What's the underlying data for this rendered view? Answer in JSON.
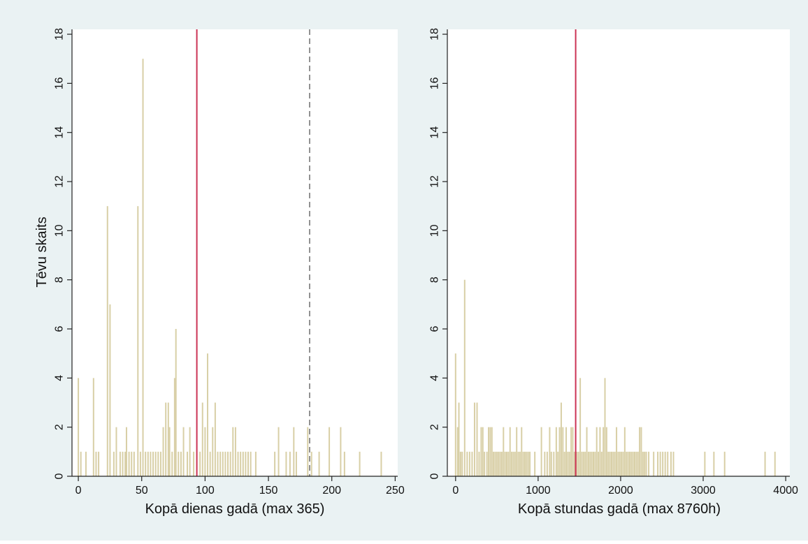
{
  "colors": {
    "background": "#eaf2f3",
    "plot_background": "#ffffff",
    "bar": "#d8cfa6",
    "mean_line": "#cc3355",
    "ref_line": "#777777"
  },
  "chart_data": [
    {
      "type": "bar",
      "xlabel": "Kopā dienas gadā (max 365)",
      "ylabel": "Tēvu skaits",
      "xlim": [
        -5,
        252
      ],
      "ylim": [
        0,
        18.2
      ],
      "xticks": [
        0,
        50,
        100,
        150,
        200,
        250
      ],
      "yticks": [
        0,
        2,
        4,
        6,
        8,
        10,
        12,
        14,
        16,
        18
      ],
      "grid": false,
      "mean_line_x": 93.5,
      "ref_line_x": 182.5,
      "bar_width": 0.9,
      "bars": [
        {
          "x": 0,
          "y": 4
        },
        {
          "x": 2,
          "y": 1
        },
        {
          "x": 6,
          "y": 1
        },
        {
          "x": 12,
          "y": 4
        },
        {
          "x": 14,
          "y": 1
        },
        {
          "x": 16,
          "y": 1
        },
        {
          "x": 23,
          "y": 11
        },
        {
          "x": 25,
          "y": 7
        },
        {
          "x": 28,
          "y": 1
        },
        {
          "x": 30,
          "y": 2
        },
        {
          "x": 33,
          "y": 1
        },
        {
          "x": 35,
          "y": 1
        },
        {
          "x": 37,
          "y": 1
        },
        {
          "x": 38,
          "y": 2
        },
        {
          "x": 40,
          "y": 1
        },
        {
          "x": 42,
          "y": 1
        },
        {
          "x": 44,
          "y": 1
        },
        {
          "x": 47,
          "y": 11
        },
        {
          "x": 49,
          "y": 1
        },
        {
          "x": 51,
          "y": 17
        },
        {
          "x": 53,
          "y": 1
        },
        {
          "x": 55,
          "y": 1
        },
        {
          "x": 57,
          "y": 1
        },
        {
          "x": 59,
          "y": 1
        },
        {
          "x": 61,
          "y": 1
        },
        {
          "x": 63,
          "y": 1
        },
        {
          "x": 65,
          "y": 1
        },
        {
          "x": 67,
          "y": 2
        },
        {
          "x": 69,
          "y": 3
        },
        {
          "x": 71,
          "y": 3
        },
        {
          "x": 72,
          "y": 2
        },
        {
          "x": 74,
          "y": 1
        },
        {
          "x": 76,
          "y": 4
        },
        {
          "x": 77,
          "y": 6
        },
        {
          "x": 79,
          "y": 1
        },
        {
          "x": 81,
          "y": 1
        },
        {
          "x": 83,
          "y": 2
        },
        {
          "x": 86,
          "y": 1
        },
        {
          "x": 88,
          "y": 2
        },
        {
          "x": 91,
          "y": 1
        },
        {
          "x": 96,
          "y": 1
        },
        {
          "x": 98,
          "y": 3
        },
        {
          "x": 100,
          "y": 2
        },
        {
          "x": 102,
          "y": 5
        },
        {
          "x": 104,
          "y": 1
        },
        {
          "x": 106,
          "y": 2
        },
        {
          "x": 108,
          "y": 3
        },
        {
          "x": 110,
          "y": 1
        },
        {
          "x": 112,
          "y": 1
        },
        {
          "x": 114,
          "y": 1
        },
        {
          "x": 116,
          "y": 1
        },
        {
          "x": 118,
          "y": 1
        },
        {
          "x": 120,
          "y": 1
        },
        {
          "x": 122,
          "y": 2
        },
        {
          "x": 124,
          "y": 2
        },
        {
          "x": 126,
          "y": 1
        },
        {
          "x": 128,
          "y": 1
        },
        {
          "x": 130,
          "y": 1
        },
        {
          "x": 132,
          "y": 1
        },
        {
          "x": 134,
          "y": 1
        },
        {
          "x": 136,
          "y": 1
        },
        {
          "x": 140,
          "y": 1
        },
        {
          "x": 155,
          "y": 1
        },
        {
          "x": 158,
          "y": 2
        },
        {
          "x": 164,
          "y": 1
        },
        {
          "x": 167,
          "y": 1
        },
        {
          "x": 170,
          "y": 2
        },
        {
          "x": 172,
          "y": 1
        },
        {
          "x": 181,
          "y": 2
        },
        {
          "x": 184,
          "y": 1
        },
        {
          "x": 190,
          "y": 1
        },
        {
          "x": 198,
          "y": 2
        },
        {
          "x": 207,
          "y": 2
        },
        {
          "x": 210,
          "y": 1
        },
        {
          "x": 222,
          "y": 1
        },
        {
          "x": 239,
          "y": 1
        }
      ]
    },
    {
      "type": "bar",
      "xlabel": "Kopā stundas gadā (max 8760h)",
      "ylabel": "",
      "xlim": [
        -100,
        4050
      ],
      "ylim": [
        0,
        18.2
      ],
      "xticks": [
        0,
        1000,
        2000,
        3000,
        4000
      ],
      "yticks": [
        0,
        2,
        4,
        6,
        8,
        10,
        12,
        14,
        16,
        18
      ],
      "grid": false,
      "mean_line_x": 1455,
      "bar_width": 14,
      "bars": [
        {
          "x": 0,
          "y": 5
        },
        {
          "x": 25,
          "y": 2
        },
        {
          "x": 40,
          "y": 3
        },
        {
          "x": 60,
          "y": 1
        },
        {
          "x": 80,
          "y": 1
        },
        {
          "x": 110,
          "y": 8
        },
        {
          "x": 140,
          "y": 1
        },
        {
          "x": 170,
          "y": 1
        },
        {
          "x": 200,
          "y": 1
        },
        {
          "x": 230,
          "y": 3
        },
        {
          "x": 260,
          "y": 3
        },
        {
          "x": 285,
          "y": 1
        },
        {
          "x": 310,
          "y": 2
        },
        {
          "x": 330,
          "y": 2
        },
        {
          "x": 350,
          "y": 1
        },
        {
          "x": 380,
          "y": 1
        },
        {
          "x": 400,
          "y": 2
        },
        {
          "x": 420,
          "y": 2
        },
        {
          "x": 440,
          "y": 2
        },
        {
          "x": 460,
          "y": 1
        },
        {
          "x": 480,
          "y": 1
        },
        {
          "x": 500,
          "y": 1
        },
        {
          "x": 520,
          "y": 1
        },
        {
          "x": 540,
          "y": 1
        },
        {
          "x": 560,
          "y": 1
        },
        {
          "x": 580,
          "y": 2
        },
        {
          "x": 600,
          "y": 1
        },
        {
          "x": 620,
          "y": 1
        },
        {
          "x": 640,
          "y": 1
        },
        {
          "x": 660,
          "y": 2
        },
        {
          "x": 680,
          "y": 1
        },
        {
          "x": 700,
          "y": 1
        },
        {
          "x": 720,
          "y": 1
        },
        {
          "x": 740,
          "y": 2
        },
        {
          "x": 760,
          "y": 1
        },
        {
          "x": 780,
          "y": 1
        },
        {
          "x": 800,
          "y": 2
        },
        {
          "x": 820,
          "y": 1
        },
        {
          "x": 840,
          "y": 1
        },
        {
          "x": 860,
          "y": 1
        },
        {
          "x": 880,
          "y": 1
        },
        {
          "x": 900,
          "y": 1
        },
        {
          "x": 960,
          "y": 1
        },
        {
          "x": 1040,
          "y": 2
        },
        {
          "x": 1080,
          "y": 1
        },
        {
          "x": 1110,
          "y": 1
        },
        {
          "x": 1140,
          "y": 2
        },
        {
          "x": 1160,
          "y": 1
        },
        {
          "x": 1190,
          "y": 1
        },
        {
          "x": 1220,
          "y": 2
        },
        {
          "x": 1240,
          "y": 1
        },
        {
          "x": 1260,
          "y": 2
        },
        {
          "x": 1280,
          "y": 3
        },
        {
          "x": 1300,
          "y": 2
        },
        {
          "x": 1320,
          "y": 1
        },
        {
          "x": 1340,
          "y": 2
        },
        {
          "x": 1360,
          "y": 1
        },
        {
          "x": 1380,
          "y": 1
        },
        {
          "x": 1400,
          "y": 2
        },
        {
          "x": 1420,
          "y": 2
        },
        {
          "x": 1440,
          "y": 1
        },
        {
          "x": 1470,
          "y": 1
        },
        {
          "x": 1490,
          "y": 1
        },
        {
          "x": 1510,
          "y": 4
        },
        {
          "x": 1530,
          "y": 1
        },
        {
          "x": 1550,
          "y": 1
        },
        {
          "x": 1570,
          "y": 1
        },
        {
          "x": 1590,
          "y": 2
        },
        {
          "x": 1610,
          "y": 1
        },
        {
          "x": 1630,
          "y": 1
        },
        {
          "x": 1650,
          "y": 1
        },
        {
          "x": 1670,
          "y": 1
        },
        {
          "x": 1690,
          "y": 1
        },
        {
          "x": 1710,
          "y": 2
        },
        {
          "x": 1730,
          "y": 1
        },
        {
          "x": 1750,
          "y": 2
        },
        {
          "x": 1770,
          "y": 1
        },
        {
          "x": 1790,
          "y": 2
        },
        {
          "x": 1810,
          "y": 4
        },
        {
          "x": 1830,
          "y": 2
        },
        {
          "x": 1850,
          "y": 1
        },
        {
          "x": 1870,
          "y": 1
        },
        {
          "x": 1890,
          "y": 1
        },
        {
          "x": 1910,
          "y": 1
        },
        {
          "x": 1930,
          "y": 1
        },
        {
          "x": 1950,
          "y": 2
        },
        {
          "x": 1970,
          "y": 1
        },
        {
          "x": 1990,
          "y": 1
        },
        {
          "x": 2010,
          "y": 1
        },
        {
          "x": 2030,
          "y": 1
        },
        {
          "x": 2050,
          "y": 2
        },
        {
          "x": 2070,
          "y": 1
        },
        {
          "x": 2090,
          "y": 1
        },
        {
          "x": 2110,
          "y": 1
        },
        {
          "x": 2130,
          "y": 1
        },
        {
          "x": 2150,
          "y": 1
        },
        {
          "x": 2170,
          "y": 1
        },
        {
          "x": 2190,
          "y": 1
        },
        {
          "x": 2210,
          "y": 1
        },
        {
          "x": 2230,
          "y": 2
        },
        {
          "x": 2250,
          "y": 2
        },
        {
          "x": 2270,
          "y": 1
        },
        {
          "x": 2290,
          "y": 1
        },
        {
          "x": 2310,
          "y": 1
        },
        {
          "x": 2340,
          "y": 1
        },
        {
          "x": 2400,
          "y": 1
        },
        {
          "x": 2450,
          "y": 1
        },
        {
          "x": 2480,
          "y": 1
        },
        {
          "x": 2510,
          "y": 1
        },
        {
          "x": 2540,
          "y": 1
        },
        {
          "x": 2570,
          "y": 1
        },
        {
          "x": 2610,
          "y": 1
        },
        {
          "x": 2640,
          "y": 1
        },
        {
          "x": 3020,
          "y": 1
        },
        {
          "x": 3130,
          "y": 1
        },
        {
          "x": 3260,
          "y": 1
        },
        {
          "x": 3750,
          "y": 1
        },
        {
          "x": 3870,
          "y": 1
        }
      ]
    }
  ]
}
